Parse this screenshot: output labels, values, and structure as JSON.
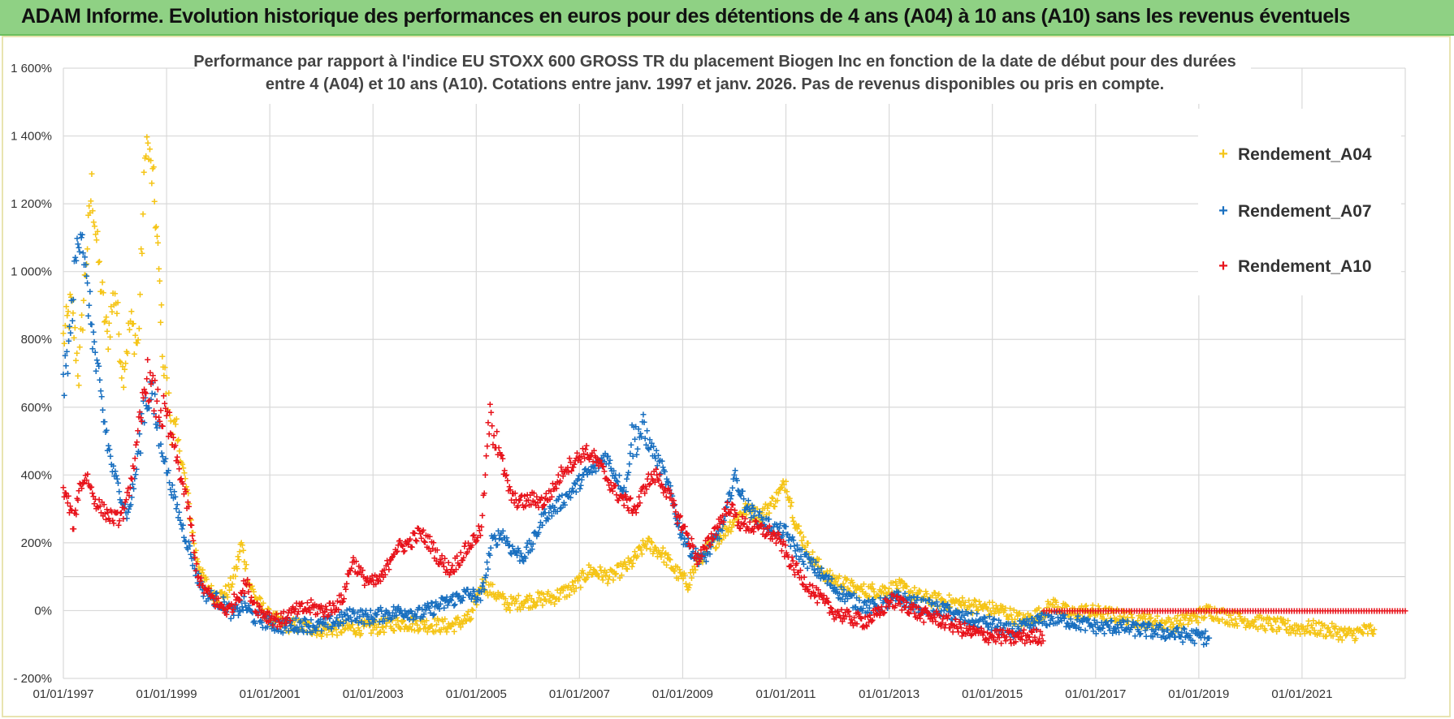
{
  "banner": {
    "title": "ADAM Informe. Evolution historique des performances en euros pour des détentions de 4 ans (A04) à 10 ans (A10) sans les revenus éventuels"
  },
  "colors": {
    "A04": "#f5c518",
    "A07": "#1a70c0",
    "A10": "#e8141c",
    "banner": "#8fd184",
    "grid": "#d9d9d9"
  },
  "chart_data": {
    "type": "scatter",
    "title": "Performance par rapport à l'indice EU STOXX 600 GROSS TR  du placement Biogen Inc en fonction de la date de début pour des durées entre 4 (A04) et 10 ans (A10).  Cotations entre janv. 1997 et janv. 2026. Pas de revenus disponibles ou pris en compte.",
    "title_lines": [
      "Performance par rapport à l'indice EU STOXX 600 GROSS TR  du placement Biogen Inc en fonction de la date de début pour des durées",
      "entre 4 (A04) et 10 ans (A10).  Cotations entre janv. 1997 et janv. 2026. Pas de revenus disponibles ou pris en compte."
    ],
    "xlabel": "",
    "ylabel": "",
    "xlim": [
      1997.0,
      2023.0
    ],
    "ylim": [
      -200,
      1600
    ],
    "x_ticks": [
      1997,
      1999,
      2001,
      2003,
      2005,
      2007,
      2009,
      2011,
      2013,
      2015,
      2017,
      2019,
      2021
    ],
    "x_tick_labels": [
      "01/01/1997",
      "01/01/1999",
      "01/01/2001",
      "01/01/2003",
      "01/01/2005",
      "01/01/2007",
      "01/01/2009",
      "01/01/2011",
      "01/01/2013",
      "01/01/2015",
      "01/01/2017",
      "01/01/2019",
      "01/01/2021"
    ],
    "y_ticks": [
      -200,
      0,
      200,
      400,
      600,
      800,
      1000,
      1200,
      1400,
      1600
    ],
    "y_tick_labels": [
      "- 200%",
      "0%",
      "200%",
      "400%",
      "600%",
      "800%",
      "1 000%",
      "1 200%",
      "1 400%",
      "1 600%"
    ],
    "legend_position": "top-right",
    "marker": "+",
    "series": [
      {
        "name": "Rendement_A04",
        "points": [
          [
            1997.0,
            800
          ],
          [
            1997.15,
            900
          ],
          [
            1997.3,
            700
          ],
          [
            1997.45,
            1050
          ],
          [
            1997.55,
            1250
          ],
          [
            1997.7,
            1000
          ],
          [
            1997.85,
            800
          ],
          [
            1998.0,
            950
          ],
          [
            1998.15,
            700
          ],
          [
            1998.3,
            850
          ],
          [
            1998.45,
            780
          ],
          [
            1998.6,
            1400
          ],
          [
            1998.75,
            1250
          ],
          [
            1998.85,
            1000
          ],
          [
            1998.95,
            700
          ],
          [
            1999.1,
            550
          ],
          [
            1999.25,
            480
          ],
          [
            1999.4,
            350
          ],
          [
            1999.55,
            180
          ],
          [
            1999.7,
            100
          ],
          [
            1999.85,
            60
          ],
          [
            2000.0,
            40
          ],
          [
            2000.2,
            60
          ],
          [
            2000.35,
            120
          ],
          [
            2000.45,
            200
          ],
          [
            2000.6,
            80
          ],
          [
            2000.8,
            20
          ],
          [
            2001.0,
            -20
          ],
          [
            2001.3,
            -40
          ],
          [
            2001.6,
            -45
          ],
          [
            2002.0,
            -55
          ],
          [
            2002.5,
            -50
          ],
          [
            2003.0,
            -50
          ],
          [
            2003.5,
            -35
          ],
          [
            2004.0,
            -40
          ],
          [
            2004.5,
            -45
          ],
          [
            2004.9,
            -20
          ],
          [
            2005.1,
            80
          ],
          [
            2005.3,
            60
          ],
          [
            2005.6,
            20
          ],
          [
            2006.0,
            30
          ],
          [
            2006.5,
            40
          ],
          [
            2006.9,
            70
          ],
          [
            2007.2,
            120
          ],
          [
            2007.6,
            100
          ],
          [
            2008.0,
            140
          ],
          [
            2008.3,
            200
          ],
          [
            2008.6,
            170
          ],
          [
            2008.9,
            110
          ],
          [
            2009.1,
            80
          ],
          [
            2009.3,
            150
          ],
          [
            2009.6,
            200
          ],
          [
            2009.9,
            250
          ],
          [
            2010.2,
            300
          ],
          [
            2010.5,
            280
          ],
          [
            2010.8,
            330
          ],
          [
            2011.0,
            380
          ],
          [
            2011.2,
            250
          ],
          [
            2011.5,
            160
          ],
          [
            2011.8,
            100
          ],
          [
            2012.0,
            90
          ],
          [
            2012.4,
            60
          ],
          [
            2012.8,
            60
          ],
          [
            2013.2,
            70
          ],
          [
            2013.6,
            40
          ],
          [
            2014.0,
            30
          ],
          [
            2014.4,
            20
          ],
          [
            2014.8,
            10
          ],
          [
            2015.2,
            0
          ],
          [
            2015.6,
            -30
          ],
          [
            2015.9,
            -10
          ],
          [
            2016.2,
            20
          ],
          [
            2016.5,
            -10
          ],
          [
            2016.8,
            0
          ],
          [
            2017.2,
            -10
          ],
          [
            2017.6,
            -20
          ],
          [
            2018.0,
            -30
          ],
          [
            2018.5,
            -40
          ],
          [
            2018.9,
            -20
          ],
          [
            2019.2,
            0
          ],
          [
            2019.6,
            -20
          ],
          [
            2020.0,
            -30
          ],
          [
            2020.4,
            -40
          ],
          [
            2020.8,
            -50
          ],
          [
            2021.2,
            -50
          ],
          [
            2021.6,
            -60
          ],
          [
            2021.9,
            -70
          ],
          [
            2022.2,
            -60
          ],
          [
            2022.4,
            -55
          ]
        ]
      },
      {
        "name": "Rendement_A07",
        "points": [
          [
            1997.0,
            650
          ],
          [
            1997.12,
            800
          ],
          [
            1997.25,
            1050
          ],
          [
            1997.35,
            1150
          ],
          [
            1997.45,
            950
          ],
          [
            1997.55,
            850
          ],
          [
            1997.65,
            700
          ],
          [
            1997.8,
            550
          ],
          [
            1997.95,
            420
          ],
          [
            1998.1,
            350
          ],
          [
            1998.25,
            280
          ],
          [
            1998.4,
            400
          ],
          [
            1998.55,
            600
          ],
          [
            1998.7,
            650
          ],
          [
            1998.85,
            520
          ],
          [
            1999.0,
            420
          ],
          [
            1999.15,
            330
          ],
          [
            1999.3,
            250
          ],
          [
            1999.45,
            180
          ],
          [
            1999.6,
            100
          ],
          [
            1999.75,
            50
          ],
          [
            1999.9,
            40
          ],
          [
            2000.1,
            20
          ],
          [
            2000.3,
            -10
          ],
          [
            2000.5,
            20
          ],
          [
            2000.7,
            -20
          ],
          [
            2000.9,
            -30
          ],
          [
            2001.2,
            -45
          ],
          [
            2001.6,
            -40
          ],
          [
            2002.0,
            -45
          ],
          [
            2002.3,
            -30
          ],
          [
            2002.6,
            -10
          ],
          [
            2002.9,
            -20
          ],
          [
            2003.2,
            -10
          ],
          [
            2003.6,
            0
          ],
          [
            2003.9,
            -10
          ],
          [
            2004.2,
            10
          ],
          [
            2004.5,
            30
          ],
          [
            2004.8,
            50
          ],
          [
            2005.1,
            40
          ],
          [
            2005.3,
            200
          ],
          [
            2005.5,
            230
          ],
          [
            2005.7,
            180
          ],
          [
            2005.9,
            160
          ],
          [
            2006.1,
            200
          ],
          [
            2006.3,
            280
          ],
          [
            2006.5,
            300
          ],
          [
            2006.7,
            330
          ],
          [
            2006.9,
            360
          ],
          [
            2007.1,
            400
          ],
          [
            2007.3,
            420
          ],
          [
            2007.5,
            460
          ],
          [
            2007.7,
            400
          ],
          [
            2007.9,
            350
          ],
          [
            2008.0,
            500
          ],
          [
            2008.2,
            530
          ],
          [
            2008.4,
            480
          ],
          [
            2008.6,
            420
          ],
          [
            2008.8,
            330
          ],
          [
            2008.9,
            260
          ],
          [
            2009.0,
            220
          ],
          [
            2009.2,
            170
          ],
          [
            2009.4,
            150
          ],
          [
            2009.6,
            200
          ],
          [
            2009.8,
            260
          ],
          [
            2010.0,
            400
          ],
          [
            2010.2,
            320
          ],
          [
            2010.4,
            280
          ],
          [
            2010.6,
            260
          ],
          [
            2010.8,
            240
          ],
          [
            2011.0,
            230
          ],
          [
            2011.2,
            180
          ],
          [
            2011.4,
            150
          ],
          [
            2011.6,
            120
          ],
          [
            2011.8,
            90
          ],
          [
            2012.0,
            60
          ],
          [
            2012.3,
            30
          ],
          [
            2012.6,
            10
          ],
          [
            2012.9,
            20
          ],
          [
            2013.2,
            40
          ],
          [
            2013.5,
            20
          ],
          [
            2013.8,
            10
          ],
          [
            2014.1,
            0
          ],
          [
            2014.4,
            -20
          ],
          [
            2014.7,
            -30
          ],
          [
            2015.0,
            -40
          ],
          [
            2015.3,
            -60
          ],
          [
            2015.6,
            -50
          ],
          [
            2015.9,
            -30
          ],
          [
            2016.2,
            -20
          ],
          [
            2016.5,
            -30
          ],
          [
            2016.8,
            -40
          ],
          [
            2017.1,
            -50
          ],
          [
            2017.4,
            -45
          ],
          [
            2017.8,
            -55
          ],
          [
            2018.2,
            -60
          ],
          [
            2018.6,
            -70
          ],
          [
            2018.9,
            -75
          ],
          [
            2019.2,
            -80
          ]
        ]
      },
      {
        "name": "Rendement_A10",
        "points": [
          [
            1997.0,
            350
          ],
          [
            1997.1,
            320
          ],
          [
            1997.2,
            250
          ],
          [
            1997.3,
            360
          ],
          [
            1997.45,
            400
          ],
          [
            1997.6,
            330
          ],
          [
            1997.75,
            300
          ],
          [
            1997.9,
            280
          ],
          [
            1998.05,
            270
          ],
          [
            1998.2,
            300
          ],
          [
            1998.35,
            420
          ],
          [
            1998.5,
            550
          ],
          [
            1998.6,
            700
          ],
          [
            1998.7,
            650
          ],
          [
            1998.85,
            600
          ],
          [
            1999.0,
            560
          ],
          [
            1999.15,
            480
          ],
          [
            1999.3,
            380
          ],
          [
            1999.45,
            280
          ],
          [
            1999.55,
            150
          ],
          [
            1999.65,
            80
          ],
          [
            1999.8,
            50
          ],
          [
            2000.0,
            20
          ],
          [
            2000.2,
            0
          ],
          [
            2000.4,
            50
          ],
          [
            2000.55,
            80
          ],
          [
            2000.7,
            20
          ],
          [
            2000.9,
            -10
          ],
          [
            2001.2,
            -30
          ],
          [
            2001.5,
            0
          ],
          [
            2001.8,
            10
          ],
          [
            2002.1,
            0
          ],
          [
            2002.4,
            30
          ],
          [
            2002.6,
            150
          ],
          [
            2002.8,
            100
          ],
          [
            2003.0,
            80
          ],
          [
            2003.2,
            100
          ],
          [
            2003.4,
            180
          ],
          [
            2003.7,
            200
          ],
          [
            2003.9,
            230
          ],
          [
            2004.1,
            200
          ],
          [
            2004.3,
            150
          ],
          [
            2004.5,
            120
          ],
          [
            2004.7,
            160
          ],
          [
            2004.9,
            200
          ],
          [
            2005.1,
            240
          ],
          [
            2005.25,
            560
          ],
          [
            2005.4,
            520
          ],
          [
            2005.55,
            400
          ],
          [
            2005.7,
            330
          ],
          [
            2005.9,
            320
          ],
          [
            2006.1,
            330
          ],
          [
            2006.3,
            320
          ],
          [
            2006.5,
            360
          ],
          [
            2006.7,
            420
          ],
          [
            2006.9,
            440
          ],
          [
            2007.1,
            470
          ],
          [
            2007.3,
            450
          ],
          [
            2007.5,
            400
          ],
          [
            2007.7,
            350
          ],
          [
            2007.9,
            320
          ],
          [
            2008.1,
            300
          ],
          [
            2008.3,
            380
          ],
          [
            2008.5,
            400
          ],
          [
            2008.7,
            350
          ],
          [
            2008.9,
            280
          ],
          [
            2009.1,
            220
          ],
          [
            2009.3,
            150
          ],
          [
            2009.5,
            200
          ],
          [
            2009.7,
            260
          ],
          [
            2009.9,
            310
          ],
          [
            2010.1,
            260
          ],
          [
            2010.3,
            250
          ],
          [
            2010.5,
            240
          ],
          [
            2010.7,
            230
          ],
          [
            2010.9,
            200
          ],
          [
            2011.1,
            140
          ],
          [
            2011.3,
            100
          ],
          [
            2011.5,
            60
          ],
          [
            2011.7,
            30
          ],
          [
            2011.9,
            0
          ],
          [
            2012.2,
            -20
          ],
          [
            2012.5,
            -30
          ],
          [
            2012.8,
            -10
          ],
          [
            2013.0,
            30
          ],
          [
            2013.3,
            20
          ],
          [
            2013.6,
            -10
          ],
          [
            2013.9,
            -20
          ],
          [
            2014.2,
            -40
          ],
          [
            2014.5,
            -60
          ],
          [
            2014.8,
            -70
          ],
          [
            2015.1,
            -75
          ],
          [
            2015.4,
            -80
          ],
          [
            2015.7,
            -75
          ],
          [
            2016.0,
            -75
          ],
          [
            2016.0,
            0
          ],
          [
            2017.0,
            0
          ],
          [
            2018.0,
            0
          ],
          [
            2019.0,
            0
          ],
          [
            2020.0,
            0
          ],
          [
            2021.0,
            0
          ],
          [
            2022.0,
            0
          ],
          [
            2023.0,
            0
          ]
        ]
      }
    ]
  }
}
